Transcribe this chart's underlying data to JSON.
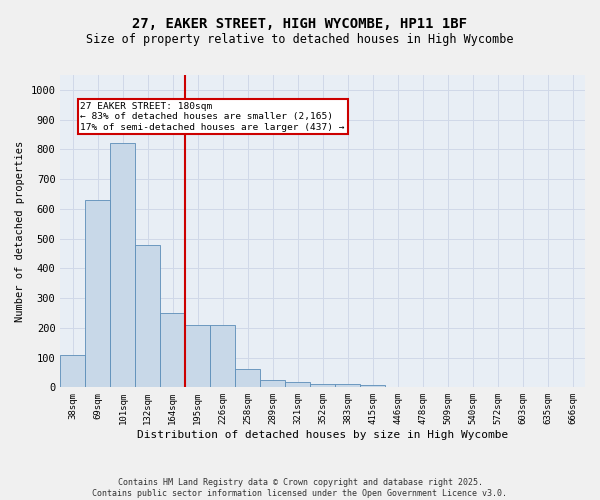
{
  "title": "27, EAKER STREET, HIGH WYCOMBE, HP11 1BF",
  "subtitle": "Size of property relative to detached houses in High Wycombe",
  "xlabel": "Distribution of detached houses by size in High Wycombe",
  "ylabel": "Number of detached properties",
  "categories": [
    "38sqm",
    "69sqm",
    "101sqm",
    "132sqm",
    "164sqm",
    "195sqm",
    "226sqm",
    "258sqm",
    "289sqm",
    "321sqm",
    "352sqm",
    "383sqm",
    "415sqm",
    "446sqm",
    "478sqm",
    "509sqm",
    "540sqm",
    "572sqm",
    "603sqm",
    "635sqm",
    "666sqm"
  ],
  "values": [
    110,
    630,
    820,
    480,
    250,
    210,
    210,
    60,
    25,
    18,
    12,
    10,
    8,
    0,
    0,
    0,
    0,
    0,
    0,
    0,
    0
  ],
  "bar_color": "#c8d8e8",
  "bar_edgecolor": "#5b8db8",
  "red_line_index": 4,
  "red_line_label": "27 EAKER STREET: 180sqm",
  "annotation_line1": "← 83% of detached houses are smaller (2,165)",
  "annotation_line2": "17% of semi-detached houses are larger (437) →",
  "annotation_box_color": "#ffffff",
  "annotation_box_edgecolor": "#cc0000",
  "vline_color": "#cc0000",
  "ylim": [
    0,
    1050
  ],
  "yticks": [
    0,
    100,
    200,
    300,
    400,
    500,
    600,
    700,
    800,
    900,
    1000
  ],
  "grid_color": "#d0d8e8",
  "bg_color": "#e8eef5",
  "fig_bg_color": "#f0f0f0",
  "footer": "Contains HM Land Registry data © Crown copyright and database right 2025.\nContains public sector information licensed under the Open Government Licence v3.0.",
  "title_fontsize": 10,
  "subtitle_fontsize": 8.5,
  "footer_fontsize": 6
}
